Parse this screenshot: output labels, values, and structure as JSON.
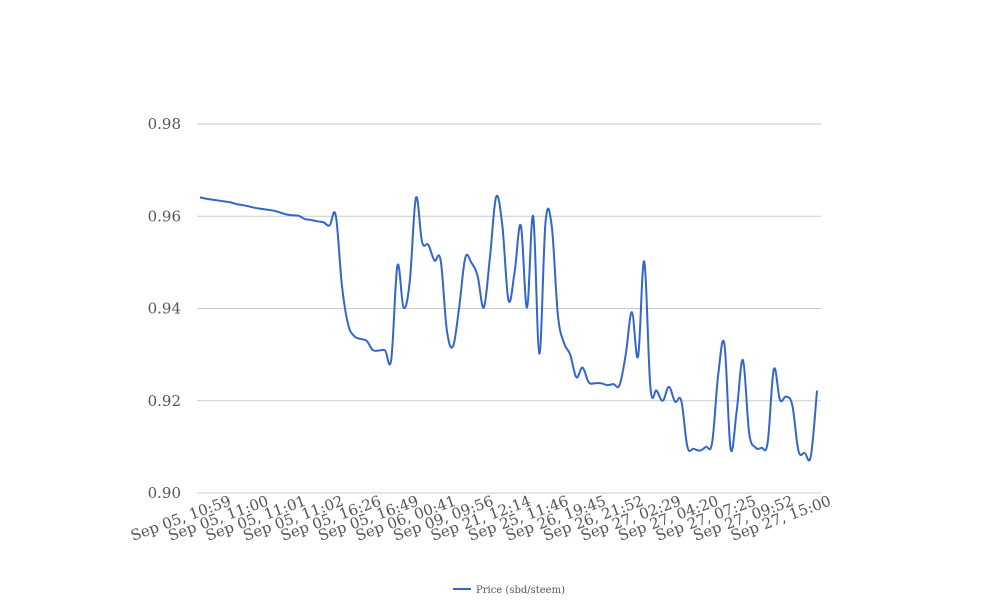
{
  "chart_data": {
    "type": "line",
    "ylim": [
      0.9,
      0.98
    ],
    "y_ticks": [
      "0.90",
      "0.92",
      "0.94",
      "0.96",
      "0.98"
    ],
    "grid": true,
    "legend_position": "bottom",
    "x_tick_labels": [
      "Sep 05, 10:59",
      "Sep 05, 11:00",
      "Sep 05, 11:01",
      "Sep 05, 11:02",
      "Sep 05, 16:26",
      "Sep 05, 16:49",
      "Sep 06, 00:41",
      "Sep 09, 09:56",
      "Sep 21, 12:14",
      "Sep 25, 11:46",
      "Sep 26, 19:45",
      "Sep 26, 21:52",
      "Sep 27, 02:29",
      "Sep 27, 04:20",
      "Sep 27, 07:25",
      "Sep 27, 09:52",
      "Sep 27, 15:00"
    ],
    "series": [
      {
        "name": "Price (sbd/steem)",
        "color": "#3366cc",
        "values": [
          0.9641,
          0.9638,
          0.9636,
          0.9634,
          0.9632,
          0.963,
          0.9626,
          0.9624,
          0.9621,
          0.9618,
          0.9616,
          0.9614,
          0.9612,
          0.9608,
          0.9604,
          0.9602,
          0.9601,
          0.9594,
          0.9592,
          0.9589,
          0.9587,
          0.958,
          0.9602,
          0.945,
          0.9366,
          0.934,
          0.9334,
          0.933,
          0.931,
          0.9309,
          0.9309,
          0.929,
          0.9493,
          0.9402,
          0.9459,
          0.964,
          0.9544,
          0.9538,
          0.9504,
          0.9505,
          0.9354,
          0.9318,
          0.9402,
          0.951,
          0.9499,
          0.947,
          0.9402,
          0.9512,
          0.9642,
          0.958,
          0.9418,
          0.948,
          0.958,
          0.9402,
          0.96,
          0.9302,
          0.9587,
          0.958,
          0.9387,
          0.9325,
          0.93,
          0.9251,
          0.9272,
          0.924,
          0.9238,
          0.9238,
          0.9234,
          0.9236,
          0.9234,
          0.93,
          0.9392,
          0.9296,
          0.9502,
          0.9229,
          0.9222,
          0.92,
          0.923,
          0.9198,
          0.92,
          0.91,
          0.9096,
          0.9092,
          0.91,
          0.9109,
          0.9258,
          0.9322,
          0.9096,
          0.918,
          0.9288,
          0.9131,
          0.9099,
          0.9098,
          0.9109,
          0.9268,
          0.9202,
          0.9209,
          0.919,
          0.9091,
          0.9087,
          0.908,
          0.9222
        ]
      }
    ]
  }
}
